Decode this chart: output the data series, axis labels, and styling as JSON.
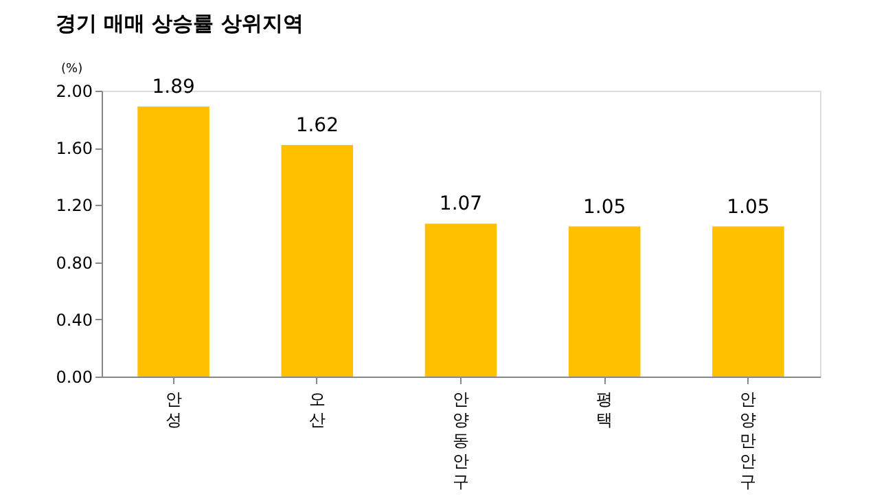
{
  "chart_data": {
    "type": "bar",
    "title": "경기 매매 상승률 상위지역",
    "ylabel": "(%)",
    "categories": [
      "안성",
      "오산",
      "안양동안구",
      "평택",
      "안양만안구"
    ],
    "values": [
      1.89,
      1.62,
      1.07,
      1.05,
      1.05
    ],
    "color": "#ffc000",
    "ylim": [
      0,
      2.0
    ],
    "yticks": [
      {
        "value": 0,
        "label": "0.00"
      },
      {
        "value": 0.4,
        "label": "0.40"
      },
      {
        "value": 0.8,
        "label": "0.80"
      },
      {
        "value": 1.2,
        "label": "1.20"
      },
      {
        "value": 1.6,
        "label": "1.60"
      },
      {
        "value": 2.0,
        "label": "2.00"
      }
    ],
    "data_labels": true,
    "grid": false
  }
}
